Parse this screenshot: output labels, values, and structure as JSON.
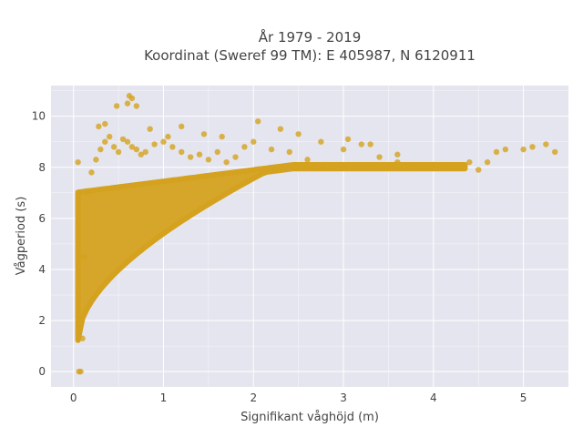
{
  "chart_data": {
    "type": "scatter",
    "title": "År 1979 - 2019",
    "subtitle": "Koordinat (Sweref 99 TM): E 405987, N 6120911",
    "xlabel": "Signifikant våghöjd (m)",
    "ylabel": "Vågperiod (s)",
    "xlim": [
      -0.25,
      5.5
    ],
    "ylim": [
      -0.6,
      11.2
    ],
    "xticks": [
      0,
      1,
      2,
      3,
      4,
      5
    ],
    "yticks": [
      0,
      2,
      4,
      6,
      8,
      10
    ],
    "grid": true,
    "legend": "none",
    "colors": {
      "plot_bg": "#e5e5ef",
      "grid": "#ffffff",
      "marker": "#d4a21e"
    },
    "series": [
      {
        "x": [
          0.05,
          0.06,
          0.08,
          0.1,
          0.12,
          0.15,
          0.2,
          0.25,
          0.3,
          0.35,
          0.4,
          0.45,
          0.5,
          0.55,
          0.6,
          0.65,
          0.7,
          0.75,
          0.8,
          0.9,
          1.0,
          1.1,
          1.2,
          1.3,
          1.4,
          1.5,
          1.6,
          1.7,
          1.8,
          1.9,
          2.0,
          2.2,
          2.4,
          2.6,
          2.8,
          3.0,
          3.2,
          3.4,
          3.6,
          3.8,
          4.0,
          4.2,
          4.4,
          4.5,
          4.6,
          4.7,
          4.8,
          5.0,
          5.1,
          5.25,
          5.35,
          0.28,
          0.35,
          0.48,
          0.6,
          0.62,
          0.65,
          0.7,
          0.85,
          1.05,
          1.2,
          1.45,
          1.65,
          2.05,
          2.3,
          2.5,
          2.75,
          3.05,
          3.3,
          3.6
        ],
        "y": [
          8.2,
          0.0,
          0.0,
          1.3,
          4.5,
          7.0,
          7.8,
          8.3,
          8.7,
          9.0,
          9.2,
          8.8,
          8.6,
          9.1,
          9.0,
          8.8,
          8.7,
          8.5,
          8.6,
          8.9,
          9.0,
          8.8,
          8.6,
          8.4,
          8.5,
          8.3,
          8.6,
          8.2,
          8.4,
          8.8,
          9.0,
          8.7,
          8.6,
          8.3,
          8.1,
          8.7,
          8.9,
          8.4,
          8.2,
          8.0,
          8.1,
          8.0,
          8.2,
          7.9,
          8.2,
          8.6,
          8.7,
          8.7,
          8.8,
          8.9,
          8.6,
          9.6,
          9.7,
          10.4,
          10.5,
          10.8,
          10.7,
          10.4,
          9.5,
          9.2,
          9.6,
          9.3,
          9.2,
          9.8,
          9.5,
          9.3,
          9.0,
          9.1,
          8.9,
          8.5
        ]
      }
    ]
  }
}
